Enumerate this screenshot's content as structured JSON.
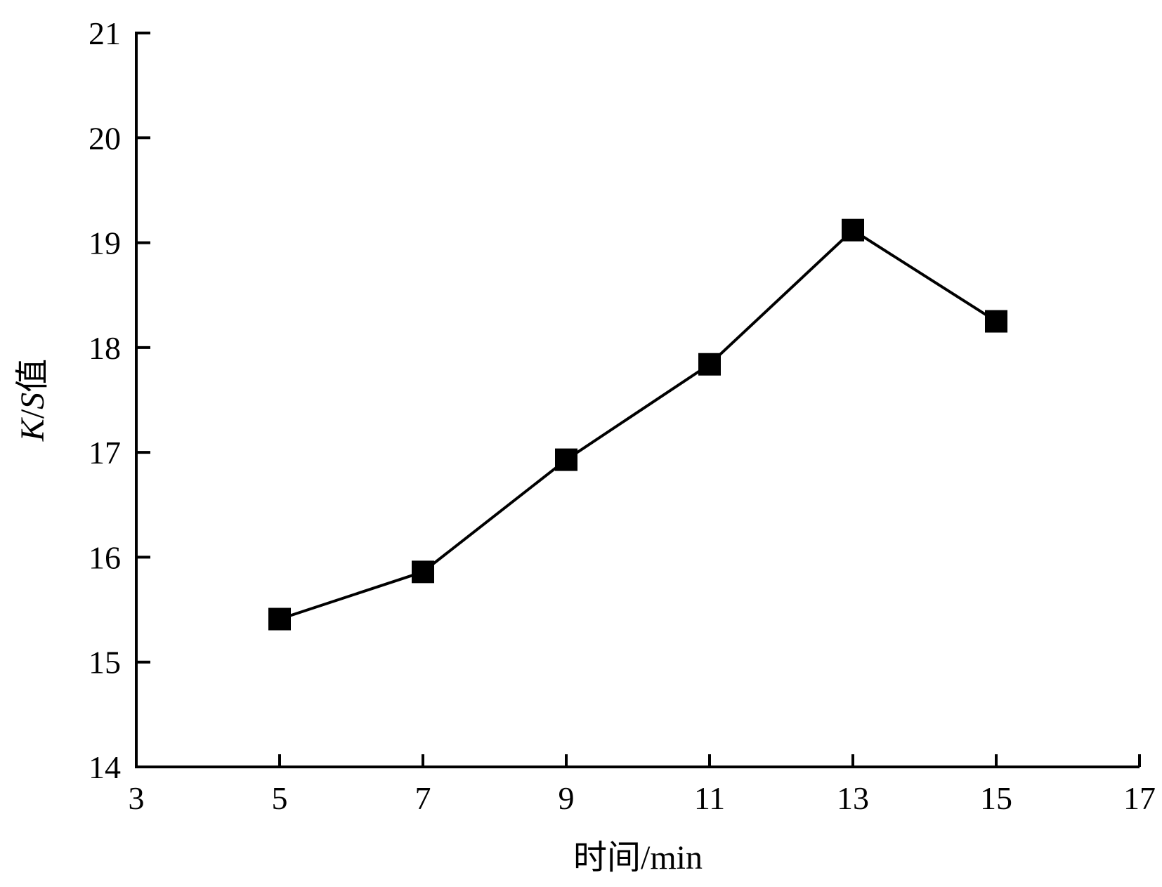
{
  "chart_data": {
    "type": "line",
    "xlabel": "时间/min",
    "ylabel_italic": "K",
    "ylabel_sep": "/",
    "ylabel_italic2": "S",
    "ylabel_suffix": "值",
    "xlim": [
      3,
      17
    ],
    "ylim": [
      14,
      21
    ],
    "x_ticks": [
      3,
      5,
      7,
      9,
      11,
      13,
      15,
      17
    ],
    "y_ticks": [
      14,
      15,
      16,
      17,
      18,
      19,
      20,
      21
    ],
    "x_tick_labels": [
      "3",
      "5",
      "7",
      "9",
      "11",
      "13",
      "15",
      "17"
    ],
    "y_tick_labels": [
      "14",
      "15",
      "16",
      "17",
      "18",
      "19",
      "20",
      "21"
    ],
    "grid": false,
    "series": [
      {
        "x": [
          5,
          7,
          9,
          11,
          13,
          15
        ],
        "values": [
          15.41,
          15.86,
          16.93,
          17.84,
          19.12,
          18.25
        ],
        "marker": "square",
        "color": "#000000"
      }
    ]
  }
}
